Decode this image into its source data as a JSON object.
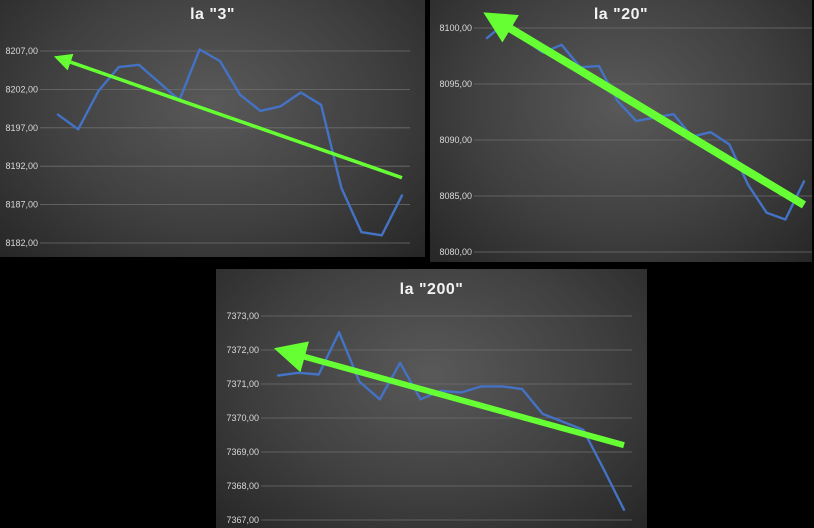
{
  "colors": {
    "background": "#000000",
    "series": "#4472c4",
    "trend": "#66ff33",
    "text": "#f2f2f2",
    "tick": "#d9d9d9",
    "grid": "#6e6e6e"
  },
  "chart_data": [
    {
      "type": "line",
      "title": "la \"3\"",
      "xlabel": "",
      "ylabel": "",
      "ylim": [
        8182,
        8207
      ],
      "yticks": [
        "8182,00",
        "8187,00",
        "8192,00",
        "8197,00",
        "8202,00",
        "8207,00"
      ],
      "grid": true,
      "legend": "none",
      "series": [
        {
          "values": [
            8198.7,
            8196.8,
            8201.8,
            8204.9,
            8205.2,
            8202.9,
            8200.6,
            8207.2,
            8205.7,
            8201.3,
            8199.2,
            8199.8,
            8201.6,
            8200.0,
            8189.2,
            8183.4,
            8183.0,
            8188.2
          ]
        }
      ],
      "trend_arrow": {
        "from": [
          17,
          8190.5
        ],
        "to": [
          -0.2,
          8206.3
        ]
      }
    },
    {
      "type": "line",
      "title": "la \"20\"",
      "xlabel": "",
      "ylabel": "",
      "ylim": [
        8080,
        8100
      ],
      "yticks": [
        "8080,00",
        "8085,00",
        "8090,00",
        "8095,00",
        "8100,00"
      ],
      "grid": true,
      "legend": "none",
      "series": [
        {
          "values": [
            8099.1,
            8100.5,
            8099.0,
            8097.8,
            8098.5,
            8096.5,
            8096.6,
            8093.5,
            8091.7,
            8092.0,
            8092.3,
            8090.3,
            8090.7,
            8089.6,
            8086.0,
            8083.5,
            8082.9,
            8086.3
          ]
        }
      ],
      "trend_arrow": {
        "from": [
          17,
          8084.2
        ],
        "to": [
          -0.2,
          8101.4
        ]
      }
    },
    {
      "type": "line",
      "title": "la \"200\"",
      "xlabel": "",
      "ylabel": "",
      "ylim": [
        7367,
        7373
      ],
      "yticks": [
        "7367,00",
        "7368,00",
        "7369,00",
        "7370,00",
        "7371,00",
        "7372,00",
        "7373,00"
      ],
      "grid": true,
      "legend": "none",
      "series": [
        {
          "values": [
            7371.25,
            7371.33,
            7371.28,
            7372.52,
            7371.07,
            7370.55,
            7371.62,
            7370.55,
            7370.8,
            7370.75,
            7370.93,
            7370.93,
            7370.85,
            7370.12,
            7369.89,
            7369.65,
            7368.5,
            7367.3
          ]
        }
      ],
      "trend_arrow": {
        "from": [
          17,
          7369.2
        ],
        "to": [
          -0.2,
          7372.05
        ]
      }
    }
  ]
}
